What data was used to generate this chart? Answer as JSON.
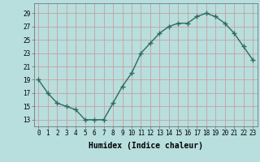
{
  "x": [
    0,
    1,
    2,
    3,
    4,
    5,
    6,
    7,
    8,
    9,
    10,
    11,
    12,
    13,
    14,
    15,
    16,
    17,
    18,
    19,
    20,
    21,
    22,
    23
  ],
  "y": [
    19,
    17,
    15.5,
    15,
    14.5,
    13,
    13,
    13,
    15.5,
    18,
    20,
    23,
    24.5,
    26,
    27,
    27.5,
    27.5,
    28.5,
    29,
    28.5,
    27.5,
    26,
    24,
    22
  ],
  "line_color": "#2e6b5e",
  "marker": "+",
  "bg_color": "#b8dede",
  "grid_color": "#c8a0a0",
  "xlabel": "Humidex (Indice chaleur)",
  "xlabel_fontsize": 7,
  "ylabel_ticks": [
    13,
    15,
    17,
    19,
    21,
    23,
    25,
    27,
    29
  ],
  "xlim": [
    -0.5,
    23.5
  ],
  "ylim": [
    12.0,
    30.5
  ],
  "tick_fontsize": 5.5,
  "line_width": 1.0,
  "marker_size": 4,
  "marker_edge_width": 1.0
}
